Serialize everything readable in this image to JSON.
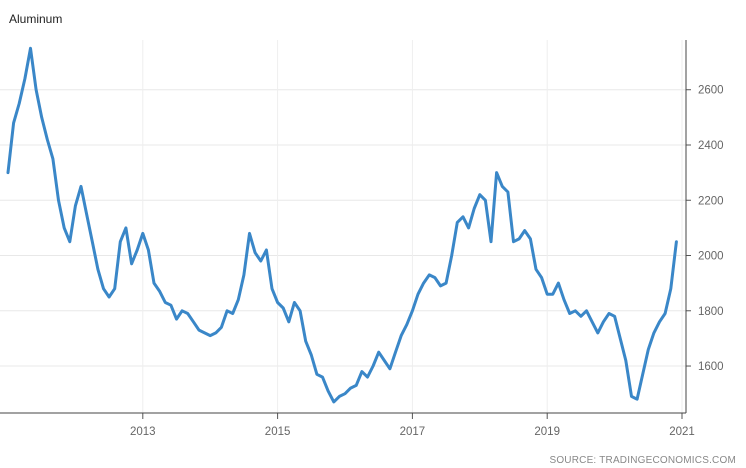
{
  "chart_data": {
    "type": "line",
    "title": "Aluminum",
    "source": "SOURCE: TRADINGECONOMICS.COM",
    "xlabel": "",
    "ylabel": "",
    "x_ticks": [
      "2013",
      "2015",
      "2017",
      "2019",
      "2021"
    ],
    "y_ticks": [
      1600,
      1800,
      2000,
      2200,
      2400,
      2600
    ],
    "xlim": [
      "2011-01",
      "2021-01"
    ],
    "ylim": [
      1430,
      2780
    ],
    "grid": true,
    "legend": "none",
    "line_color": "#3a87c8",
    "series": [
      {
        "x": [
          "2011-01",
          "2011-02",
          "2011-03",
          "2011-04",
          "2011-05",
          "2011-06",
          "2011-07",
          "2011-08",
          "2011-09",
          "2011-10",
          "2011-11",
          "2011-12",
          "2012-01",
          "2012-02",
          "2012-03",
          "2012-04",
          "2012-05",
          "2012-06",
          "2012-07",
          "2012-08",
          "2012-09",
          "2012-10",
          "2012-11",
          "2012-12",
          "2013-01",
          "2013-02",
          "2013-03",
          "2013-04",
          "2013-05",
          "2013-06",
          "2013-07",
          "2013-08",
          "2013-09",
          "2013-10",
          "2013-11",
          "2013-12",
          "2014-01",
          "2014-02",
          "2014-03",
          "2014-04",
          "2014-05",
          "2014-06",
          "2014-07",
          "2014-08",
          "2014-09",
          "2014-10",
          "2014-11",
          "2014-12",
          "2015-01",
          "2015-02",
          "2015-03",
          "2015-04",
          "2015-05",
          "2015-06",
          "2015-07",
          "2015-08",
          "2015-09",
          "2015-10",
          "2015-11",
          "2015-12",
          "2016-01",
          "2016-02",
          "2016-03",
          "2016-04",
          "2016-05",
          "2016-06",
          "2016-07",
          "2016-08",
          "2016-09",
          "2016-10",
          "2016-11",
          "2016-12",
          "2017-01",
          "2017-02",
          "2017-03",
          "2017-04",
          "2017-05",
          "2017-06",
          "2017-07",
          "2017-08",
          "2017-09",
          "2017-10",
          "2017-11",
          "2017-12",
          "2018-01",
          "2018-02",
          "2018-03",
          "2018-04",
          "2018-05",
          "2018-06",
          "2018-07",
          "2018-08",
          "2018-09",
          "2018-10",
          "2018-11",
          "2018-12",
          "2019-01",
          "2019-02",
          "2019-03",
          "2019-04",
          "2019-05",
          "2019-06",
          "2019-07",
          "2019-08",
          "2019-09",
          "2019-10",
          "2019-11",
          "2019-12",
          "2020-01",
          "2020-02",
          "2020-03",
          "2020-04",
          "2020-05",
          "2020-06",
          "2020-07",
          "2020-08",
          "2020-09",
          "2020-10",
          "2020-11",
          "2020-12"
        ],
        "values": [
          2300,
          2480,
          2550,
          2640,
          2750,
          2600,
          2500,
          2420,
          2350,
          2200,
          2100,
          2050,
          2180,
          2250,
          2150,
          2050,
          1950,
          1880,
          1850,
          1880,
          2050,
          2100,
          1970,
          2020,
          2080,
          2020,
          1900,
          1870,
          1830,
          1820,
          1770,
          1800,
          1790,
          1760,
          1730,
          1720,
          1710,
          1720,
          1740,
          1800,
          1790,
          1840,
          1930,
          2080,
          2010,
          1980,
          2020,
          1880,
          1830,
          1810,
          1760,
          1830,
          1800,
          1690,
          1640,
          1570,
          1560,
          1510,
          1470,
          1490,
          1500,
          1520,
          1530,
          1580,
          1560,
          1600,
          1650,
          1620,
          1590,
          1650,
          1710,
          1750,
          1800,
          1860,
          1900,
          1930,
          1920,
          1890,
          1900,
          2000,
          2120,
          2140,
          2100,
          2170,
          2220,
          2200,
          2050,
          2300,
          2250,
          2230,
          2050,
          2060,
          2090,
          2060,
          1950,
          1920,
          1860,
          1860,
          1900,
          1840,
          1790,
          1800,
          1780,
          1800,
          1760,
          1720,
          1760,
          1790,
          1780,
          1700,
          1620,
          1490,
          1480,
          1570,
          1660,
          1720,
          1760,
          1790,
          1880,
          2050
        ]
      }
    ]
  }
}
